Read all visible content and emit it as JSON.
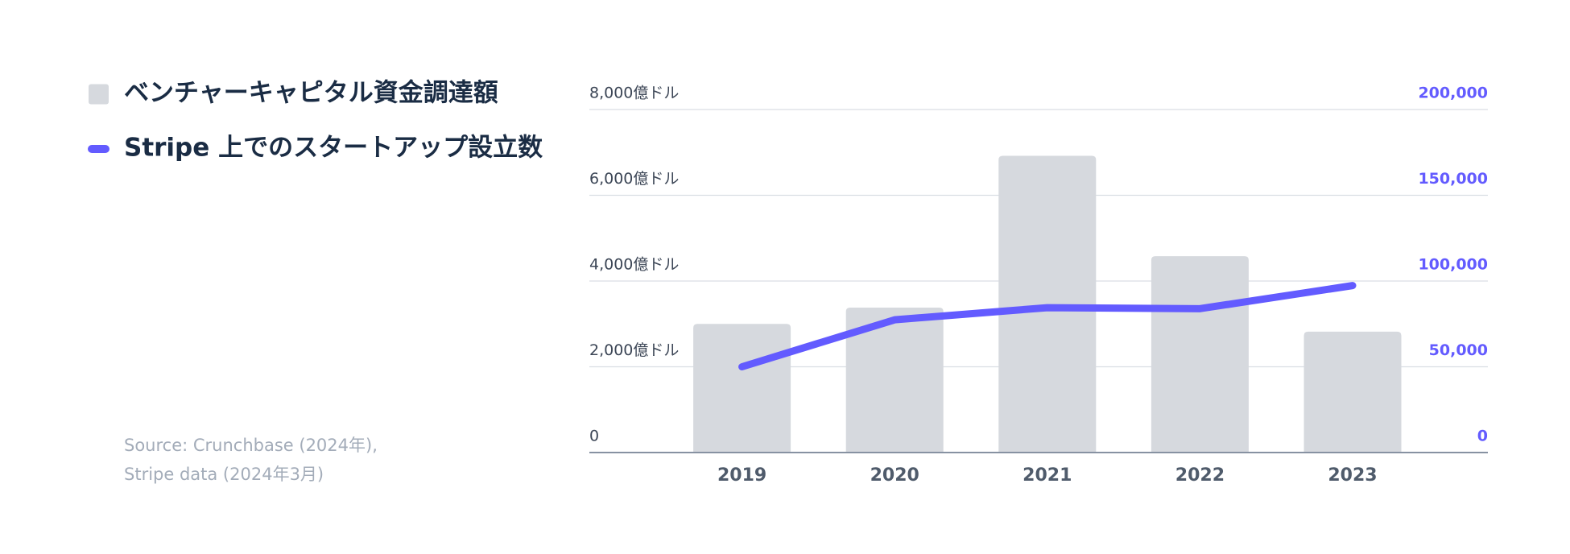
{
  "chart_data": {
    "type": "bar",
    "categories": [
      "2019",
      "2020",
      "2021",
      "2022",
      "2023"
    ],
    "series": [
      {
        "name": "ベンチャーキャピタル資金調達額",
        "type": "bar",
        "color": "#d6d9de",
        "values": [
          3000,
          3380,
          6920,
          4580,
          2820
        ]
      },
      {
        "name": "Stripe 上でのスタートアップ設立数",
        "type": "line",
        "axis": "y2",
        "color": "#635bff",
        "values": [
          50000,
          77400,
          84460,
          83870,
          97360
        ]
      }
    ],
    "ylim": [
      0,
      8000
    ],
    "yticks": [
      0,
      {
        "value": 2000,
        "label": "2,000億ドル"
      },
      {
        "value": 4000,
        "label": "4,000億ドル"
      },
      {
        "value": 6000,
        "label": "6,000億ドル"
      },
      {
        "value": 8000,
        "label": "8,000億ドル"
      }
    ],
    "y2lim": [
      0,
      200000
    ],
    "y2ticks": [
      0,
      {
        "value": 50000,
        "label": "50,000"
      },
      {
        "value": 100000,
        "label": "100,000"
      },
      {
        "value": 150000,
        "label": "150,000"
      },
      {
        "value": 200000,
        "label": "200,000"
      }
    ],
    "y2color": "#635bff",
    "grid": true,
    "source": [
      "Source: Crunchbase (2024年),",
      "Stripe data (2024年3月)"
    ]
  }
}
